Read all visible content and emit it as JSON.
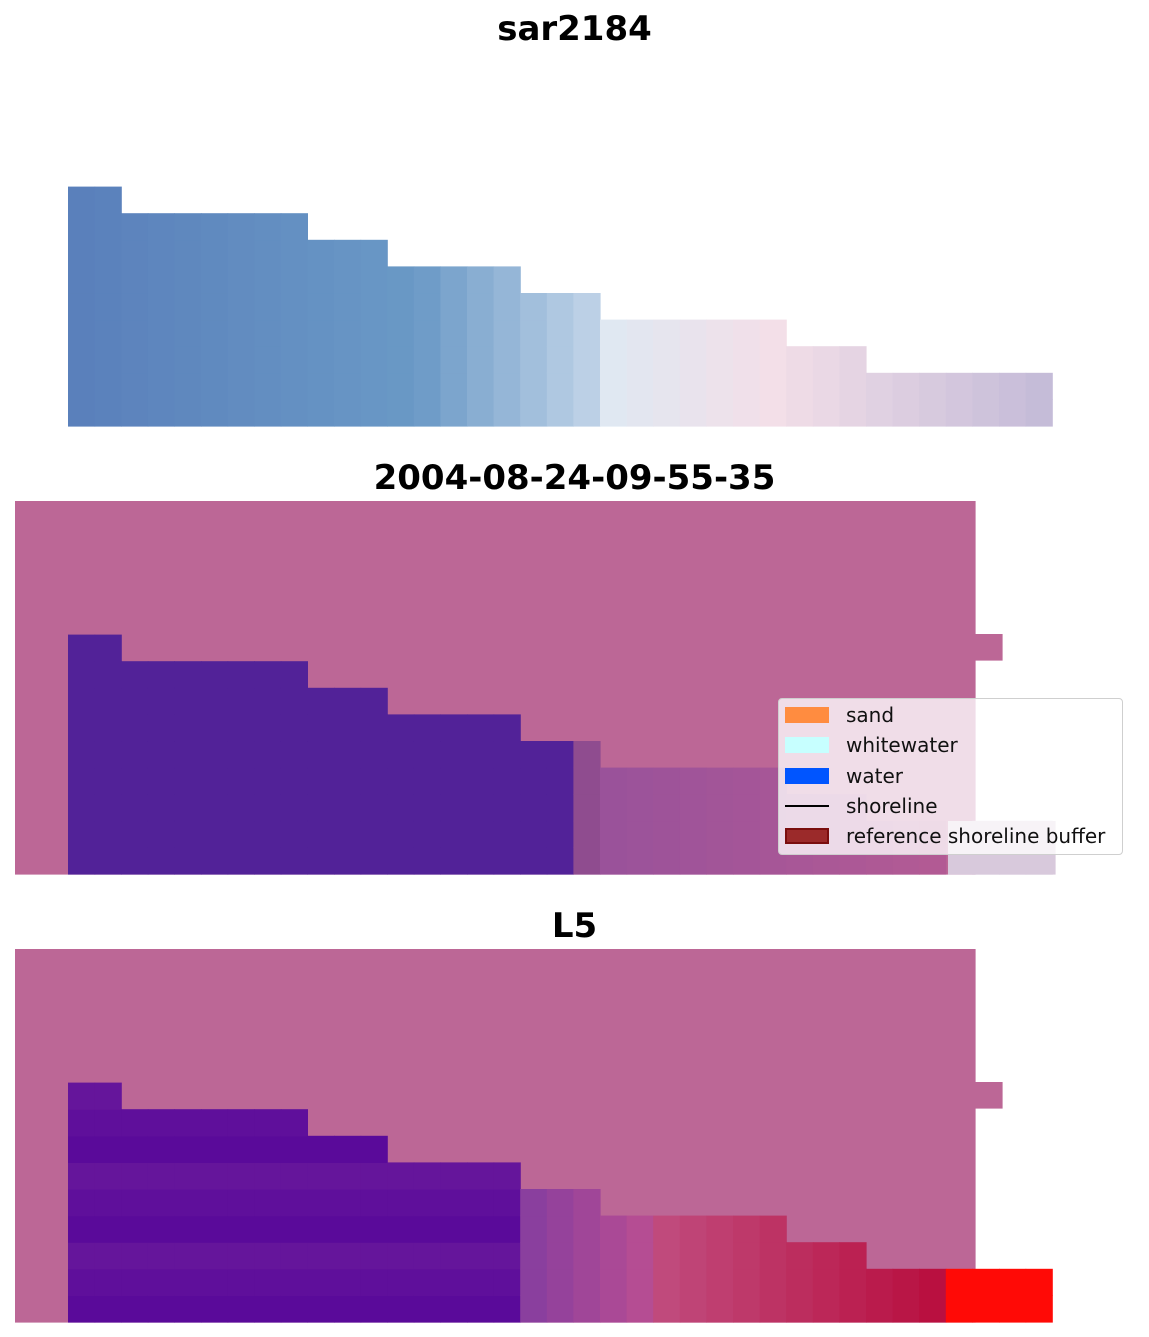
{
  "panels": [
    {
      "title": "sar2184"
    },
    {
      "title": "2004-08-24-09-55-35"
    },
    {
      "title": "L5"
    }
  ],
  "legend": {
    "items": [
      {
        "label": "sand",
        "color": "#ff8c40",
        "kind": "patch"
      },
      {
        "label": "whitewater",
        "color": "#c7ffff",
        "kind": "patch"
      },
      {
        "label": "water",
        "color": "#0055ff",
        "kind": "patch"
      },
      {
        "label": "shoreline",
        "color": "#000000",
        "kind": "line"
      },
      {
        "label": "reference shoreline buffer",
        "color": "#9b2a2a",
        "edge": "#7a0e0e",
        "kind": "patch"
      }
    ]
  },
  "colors": {
    "overlay_pink": "#bc6796",
    "deep_purple": "#522298",
    "l5_purple": "#5a0a9a",
    "l5_red": "#ff0a06"
  }
}
